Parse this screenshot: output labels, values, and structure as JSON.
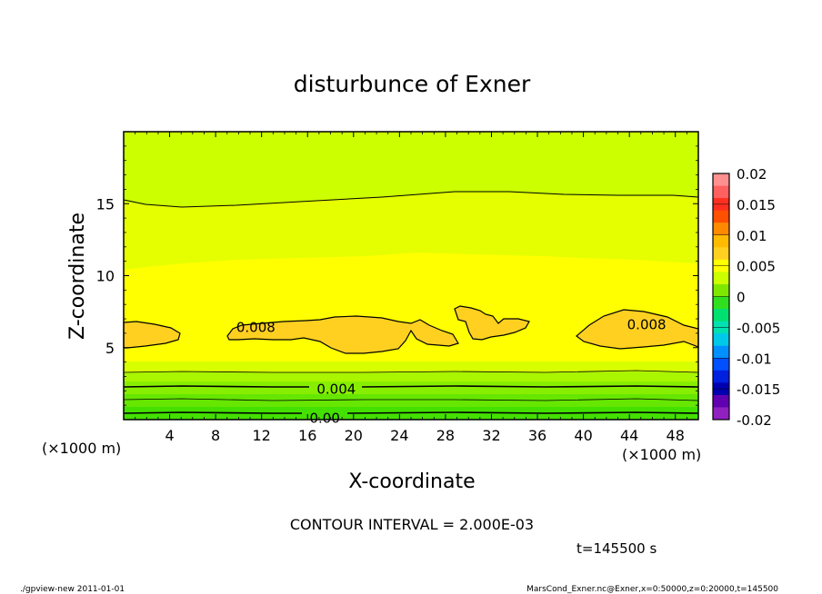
{
  "chart_data": {
    "type": "contour",
    "title": "disturbunce of Exner",
    "xlabel": "X-coordinate",
    "ylabel": "Z-coordinate",
    "x_unit": "(×1000 m)",
    "y_unit": "(×1000 m)",
    "xlim": [
      0,
      50
    ],
    "ylim": [
      0,
      20
    ],
    "x_ticks": [
      4,
      8,
      12,
      16,
      20,
      24,
      28,
      32,
      36,
      40,
      44,
      48
    ],
    "y_ticks": [
      5,
      10,
      15
    ],
    "contour_interval_text": "CONTOUR INTERVAL = 2.000E-03",
    "contour_labels": [
      {
        "text": "0.008",
        "x": 11.5,
        "z": 6.4
      },
      {
        "text": "0.008",
        "x": 45.5,
        "z": 6.6
      },
      {
        "text": "0.004",
        "x": 18.5,
        "z": 2.1
      },
      {
        "text": "0.00",
        "x": 17.5,
        "z": 0.1
      }
    ],
    "colorbar": {
      "ticks": [
        "0.02",
        "0.015",
        "0.01",
        "0.005",
        "0",
        "-0.005",
        "-0.01",
        "-0.015",
        "-0.02"
      ],
      "colors": [
        "#ff9090",
        "#ff6060",
        "#ff3020",
        "#ff5000",
        "#ff8a00",
        "#ffbb00",
        "#ffd020",
        "#ffff00",
        "#ccff00",
        "#80e800",
        "#30e020",
        "#00e070",
        "#00e0b0",
        "#00c8e8",
        "#0090ff",
        "#0050ff",
        "#0020e0",
        "#0000b0",
        "#6000b0",
        "#9020c0"
      ]
    },
    "time_label": "t=145500 s"
  },
  "footer": {
    "left": "./gpview-new   2011-01-01",
    "right": "MarsCond_Exner.nc@Exner,x=0:50000,z=0:20000,t=145500"
  }
}
